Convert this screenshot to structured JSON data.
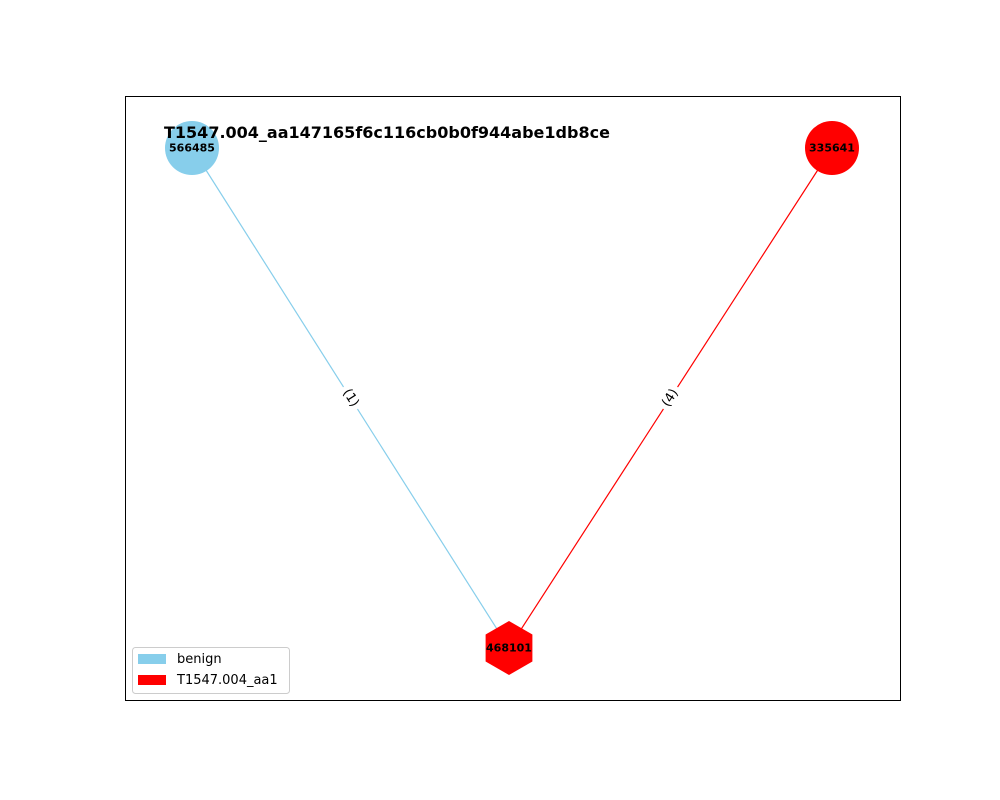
{
  "title": "T1547.004_aa147165f6c116cb0b0f944abe1db8ce",
  "colors": {
    "benign": "#87ceeb",
    "malicious": "#ff0000"
  },
  "nodes": [
    {
      "id": "566485",
      "shape": "circle",
      "category": "benign"
    },
    {
      "id": "335641",
      "shape": "circle",
      "category": "malicious"
    },
    {
      "id": "468101",
      "shape": "hexagon",
      "category": "malicious"
    }
  ],
  "edges": [
    {
      "source": "566485",
      "target": "468101",
      "label": "(1)",
      "category": "benign"
    },
    {
      "source": "335641",
      "target": "468101",
      "label": "(4)",
      "category": "malicious"
    }
  ],
  "legend": [
    {
      "label": "benign",
      "category": "benign"
    },
    {
      "label": "T1547.004_aa1",
      "category": "malicious"
    }
  ]
}
